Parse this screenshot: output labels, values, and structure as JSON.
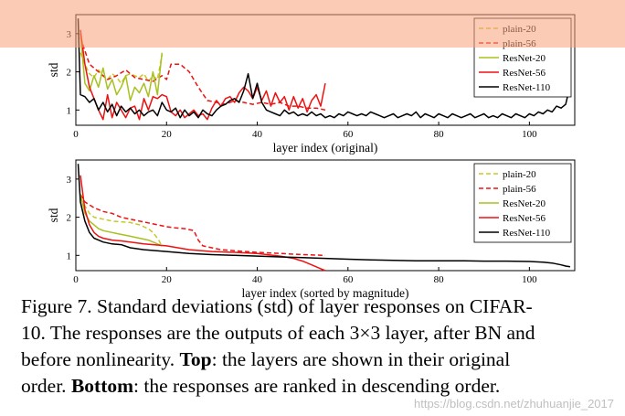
{
  "chart_data": [
    {
      "type": "line",
      "xlabel": "layer index (original)",
      "ylabel": "std",
      "xlim": [
        0,
        110
      ],
      "ylim": [
        0.6,
        3.5
      ],
      "xticks": [
        0,
        20,
        40,
        60,
        80,
        100
      ],
      "yticks": [
        1,
        2,
        3
      ],
      "legend_position": "top-right",
      "series": [
        {
          "name": "plain-20",
          "color": "#c8c82a",
          "dash": true,
          "x": [
            1,
            2,
            3,
            4,
            5,
            6,
            7,
            8,
            9,
            10,
            11,
            12,
            13,
            14,
            15,
            16,
            17,
            18,
            19
          ],
          "y": [
            2.5,
            2.2,
            1.95,
            1.85,
            2.05,
            1.9,
            1.8,
            1.95,
            1.85,
            1.7,
            1.9,
            1.95,
            1.9,
            1.85,
            1.95,
            1.75,
            1.9,
            1.8,
            2.45
          ]
        },
        {
          "name": "plain-56",
          "color": "#ee1111",
          "dash": true,
          "x": [
            1,
            3,
            5,
            7,
            9,
            11,
            13,
            15,
            17,
            19,
            20,
            21,
            23,
            25,
            27,
            29,
            31,
            33,
            35,
            37,
            39,
            41,
            43,
            45,
            47,
            49,
            51,
            53,
            55
          ],
          "y": [
            2.9,
            2.2,
            2.0,
            1.8,
            1.9,
            2.05,
            1.85,
            1.8,
            1.75,
            1.9,
            1.8,
            2.2,
            2.2,
            2.0,
            1.6,
            1.25,
            1.2,
            1.15,
            1.25,
            1.2,
            1.15,
            1.2,
            1.15,
            1.2,
            1.1,
            1.1,
            1.05,
            1.05,
            1.0
          ]
        },
        {
          "name": "ResNet-20",
          "color": "#a8c020",
          "dash": false,
          "x": [
            1,
            2,
            3,
            4,
            5,
            6,
            7,
            8,
            9,
            10,
            11,
            12,
            13,
            14,
            15,
            16,
            17,
            18,
            19
          ],
          "y": [
            3.0,
            1.7,
            1.5,
            1.9,
            1.6,
            2.1,
            1.55,
            1.8,
            1.4,
            1.6,
            1.9,
            1.25,
            1.6,
            1.45,
            1.7,
            1.35,
            2.0,
            1.4,
            2.5
          ]
        },
        {
          "name": "ResNet-56",
          "color": "#ee1111",
          "dash": false,
          "x": [
            1,
            2,
            3,
            4,
            5,
            6,
            7,
            8,
            9,
            10,
            11,
            12,
            13,
            14,
            15,
            16,
            17,
            18,
            19,
            20,
            21,
            22,
            23,
            24,
            25,
            26,
            27,
            28,
            29,
            30,
            31,
            32,
            33,
            34,
            35,
            36,
            37,
            38,
            39,
            40,
            41,
            42,
            43,
            44,
            45,
            46,
            47,
            48,
            49,
            50,
            51,
            52,
            53,
            54,
            55
          ],
          "y": [
            3.1,
            2.2,
            1.6,
            1.3,
            1.0,
            0.75,
            1.4,
            0.8,
            1.2,
            1.0,
            0.8,
            1.05,
            1.1,
            0.75,
            1.3,
            1.0,
            1.35,
            1.3,
            1.4,
            1.35,
            0.95,
            0.85,
            1.0,
            0.8,
            0.9,
            1.0,
            0.85,
            0.9,
            0.75,
            1.05,
            1.25,
            1.1,
            1.3,
            1.35,
            1.2,
            1.45,
            1.6,
            1.5,
            1.3,
            1.6,
            1.25,
            1.5,
            1.1,
            1.45,
            1.2,
            1.35,
            1.0,
            1.35,
            1.05,
            1.3,
            0.95,
            1.25,
            1.4,
            1.1,
            1.7
          ]
        },
        {
          "name": "ResNet-110",
          "color": "#000000",
          "dash": false,
          "x": [
            0.5,
            1,
            2,
            3,
            4,
            5,
            6,
            7,
            8,
            9,
            10,
            11,
            12,
            13,
            14,
            15,
            16,
            17,
            18,
            19,
            20,
            21,
            22,
            23,
            24,
            25,
            26,
            27,
            28,
            29,
            30,
            31,
            32,
            33,
            34,
            35,
            36,
            37,
            38,
            39,
            40,
            41,
            42,
            43,
            44,
            45,
            46,
            47,
            48,
            49,
            50,
            51,
            52,
            53,
            54,
            55,
            56,
            57,
            58,
            59,
            60,
            61,
            62,
            63,
            64,
            65,
            66,
            67,
            68,
            69,
            70,
            71,
            72,
            73,
            74,
            75,
            76,
            77,
            78,
            79,
            80,
            81,
            82,
            83,
            84,
            85,
            86,
            87,
            88,
            89,
            90,
            91,
            92,
            93,
            94,
            95,
            96,
            97,
            98,
            99,
            100,
            101,
            102,
            103,
            104,
            105,
            106,
            107,
            108,
            109
          ],
          "y": [
            3.4,
            1.4,
            1.35,
            1.2,
            1.3,
            1.0,
            1.2,
            0.95,
            1.15,
            0.85,
            1.1,
            0.95,
            1.05,
            0.9,
            1.0,
            0.85,
            0.95,
            1.0,
            0.85,
            1.2,
            1.0,
            0.95,
            1.05,
            0.8,
            1.0,
            0.85,
            0.95,
            0.8,
            1.0,
            0.9,
            0.85,
            1.0,
            1.1,
            1.15,
            1.25,
            1.3,
            1.2,
            1.5,
            1.95,
            1.3,
            1.7,
            1.2,
            1.0,
            0.95,
            0.9,
            0.85,
            1.0,
            0.9,
            0.95,
            0.85,
            0.9,
            0.85,
            0.95,
            0.85,
            0.9,
            0.8,
            0.85,
            0.8,
            0.9,
            0.85,
            0.95,
            0.9,
            0.85,
            0.9,
            0.85,
            0.95,
            0.9,
            0.85,
            0.8,
            0.85,
            0.9,
            0.8,
            0.85,
            0.9,
            0.85,
            0.95,
            0.8,
            0.9,
            0.85,
            0.8,
            0.9,
            0.85,
            0.8,
            0.9,
            0.85,
            0.8,
            0.85,
            0.9,
            0.8,
            0.85,
            0.9,
            0.8,
            0.85,
            0.8,
            0.9,
            0.85,
            0.8,
            0.9,
            0.85,
            0.8,
            0.9,
            0.85,
            0.95,
            0.9,
            1.0,
            0.95,
            1.1,
            1.05,
            1.15,
            1.65
          ]
        }
      ]
    },
    {
      "type": "line",
      "xlabel": "layer index (sorted by magnitude)",
      "ylabel": "std",
      "xlim": [
        0,
        110
      ],
      "ylim": [
        0.6,
        3.5
      ],
      "xticks": [
        0,
        20,
        40,
        60,
        80,
        100
      ],
      "yticks": [
        1,
        2,
        3
      ],
      "legend_position": "top-right",
      "series": [
        {
          "name": "plain-20",
          "color": "#c8c82a",
          "dash": true,
          "x": [
            1,
            2,
            3,
            4,
            6,
            8,
            10,
            12,
            14,
            16,
            17,
            18,
            19
          ],
          "y": [
            2.5,
            2.3,
            2.1,
            2.0,
            1.95,
            1.9,
            1.88,
            1.86,
            1.8,
            1.7,
            1.6,
            1.45,
            1.25
          ]
        },
        {
          "name": "plain-56",
          "color": "#ee1111",
          "dash": true,
          "x": [
            1,
            2,
            4,
            6,
            8,
            10,
            12,
            14,
            16,
            18,
            20,
            22,
            24,
            26,
            27,
            28,
            30,
            32,
            35,
            40,
            45,
            50,
            55
          ],
          "y": [
            2.6,
            2.4,
            2.25,
            2.15,
            2.1,
            2.0,
            1.95,
            1.9,
            1.85,
            1.8,
            1.75,
            1.72,
            1.7,
            1.65,
            1.4,
            1.25,
            1.2,
            1.15,
            1.12,
            1.08,
            1.05,
            1.02,
            1.0
          ]
        },
        {
          "name": "ResNet-20",
          "color": "#a8c020",
          "dash": false,
          "x": [
            1,
            2,
            3,
            4,
            5,
            6,
            8,
            10,
            12,
            14,
            16,
            17,
            18,
            19
          ],
          "y": [
            2.6,
            2.1,
            1.9,
            1.8,
            1.7,
            1.65,
            1.6,
            1.55,
            1.5,
            1.45,
            1.4,
            1.35,
            1.3,
            1.25
          ]
        },
        {
          "name": "ResNet-56",
          "color": "#ee1111",
          "dash": false,
          "x": [
            1,
            2,
            3,
            4,
            5,
            6,
            8,
            10,
            12,
            15,
            20,
            25,
            30,
            35,
            40,
            45,
            48,
            50,
            52,
            54,
            55
          ],
          "y": [
            3.1,
            2.2,
            1.8,
            1.6,
            1.5,
            1.45,
            1.4,
            1.38,
            1.35,
            1.3,
            1.25,
            1.15,
            1.1,
            1.08,
            1.05,
            0.98,
            0.92,
            0.85,
            0.75,
            0.65,
            0.6
          ]
        },
        {
          "name": "ResNet-110",
          "color": "#000000",
          "dash": false,
          "x": [
            0.5,
            1,
            2,
            3,
            4,
            5,
            6,
            8,
            10,
            12,
            15,
            20,
            25,
            30,
            35,
            40,
            45,
            50,
            55,
            60,
            65,
            70,
            75,
            80,
            85,
            90,
            95,
            100,
            103,
            105,
            107,
            108,
            109
          ],
          "y": [
            3.4,
            2.4,
            1.9,
            1.6,
            1.45,
            1.4,
            1.35,
            1.3,
            1.28,
            1.2,
            1.15,
            1.1,
            1.05,
            1.02,
            1.0,
            0.98,
            0.96,
            0.94,
            0.92,
            0.9,
            0.88,
            0.87,
            0.86,
            0.86,
            0.86,
            0.85,
            0.85,
            0.84,
            0.82,
            0.8,
            0.75,
            0.72,
            0.7
          ]
        }
      ]
    }
  ],
  "caption": {
    "line1": "Figure 7. Standard deviations (std) of layer responses on CIFAR-",
    "line2": "10. The responses are the outputs of each 3×3 layer, after BN and",
    "line3_pre": "before nonlinearity. ",
    "line3_bold": "Top",
    "line3_post": ": the layers are shown in their original",
    "line4_pre": "order. ",
    "line4_bold": "Bottom",
    "line4_post": ": the responses are ranked in descending order."
  },
  "watermark": "https://blog.csdn.net/zhuhuanjie_2017"
}
